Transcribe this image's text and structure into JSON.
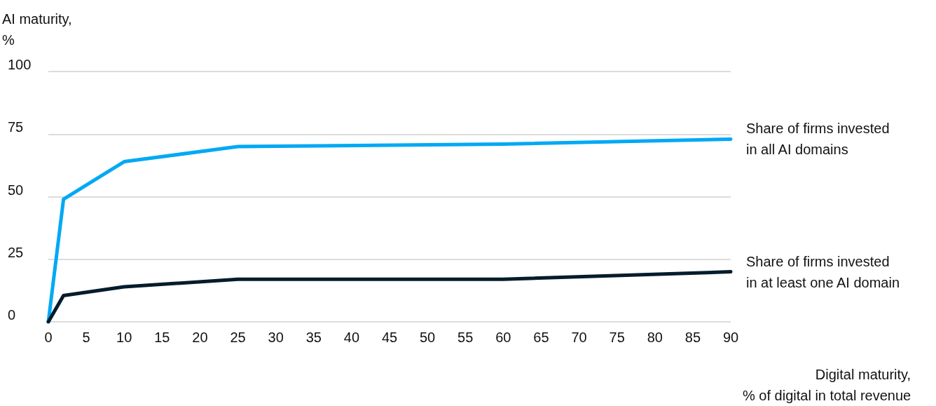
{
  "chart_data": {
    "type": "line",
    "xlabel": "Digital maturity,\n% of digital in total revenue",
    "ylabel": "AI maturity,\n%",
    "x": [
      0,
      2,
      10,
      25,
      60,
      90
    ],
    "series": [
      {
        "name": "Share of firms invested\nin all AI domains",
        "color": "#00a9f4",
        "values": [
          0,
          49,
          64,
          70,
          71,
          73
        ]
      },
      {
        "name": "Share of firms invested\nin at least one AI domain",
        "color": "#051c2c",
        "values": [
          0,
          10.5,
          14,
          17,
          17,
          20
        ]
      }
    ],
    "xlim": [
      0,
      90
    ],
    "xticks": [
      0,
      5,
      10,
      15,
      20,
      25,
      30,
      35,
      40,
      45,
      50,
      55,
      60,
      65,
      70,
      75,
      80,
      85,
      90
    ],
    "ylim": [
      0,
      100
    ],
    "yticks": [
      0,
      25,
      50,
      75,
      100
    ],
    "grid": "y",
    "marker": "none",
    "line_style": "solid"
  }
}
